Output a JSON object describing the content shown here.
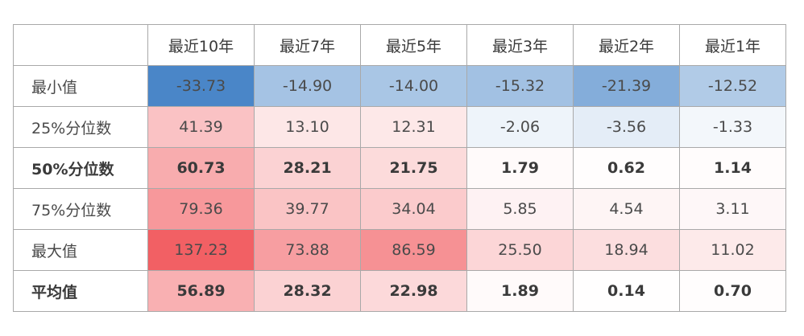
{
  "chart_data": {
    "type": "heatmap",
    "columns": [
      "最近10年",
      "最近7年",
      "最近5年",
      "最近3年",
      "最近2年",
      "最近1年"
    ],
    "rows": [
      {
        "label": "最小值",
        "bold": false,
        "values": [
          "-33.73",
          "-14.90",
          "-14.00",
          "-15.32",
          "-21.39",
          "-12.52"
        ]
      },
      {
        "label": "25%分位数",
        "bold": false,
        "values": [
          "41.39",
          "13.10",
          "12.31",
          "-2.06",
          "-3.56",
          "-1.33"
        ]
      },
      {
        "label": "50%分位数",
        "bold": true,
        "values": [
          "60.73",
          "28.21",
          "21.75",
          "1.79",
          "0.62",
          "1.14"
        ]
      },
      {
        "label": "75%分位数",
        "bold": false,
        "values": [
          "79.36",
          "39.77",
          "34.04",
          "5.85",
          "4.54",
          "3.11"
        ]
      },
      {
        "label": "最大值",
        "bold": false,
        "values": [
          "137.23",
          "73.88",
          "86.59",
          "25.50",
          "18.94",
          "11.02"
        ]
      },
      {
        "label": "平均值",
        "bold": true,
        "values": [
          "56.89",
          "28.32",
          "22.98",
          "1.89",
          "0.14",
          "0.70"
        ]
      }
    ],
    "colors": {
      "negative": "#4a86c8",
      "neutral": "#ffffff",
      "positive": "#f26064"
    }
  }
}
